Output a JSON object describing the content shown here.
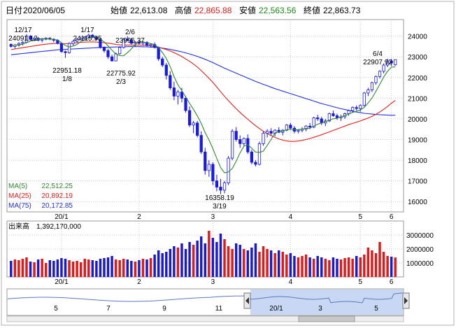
{
  "header": {
    "date_label": "日付",
    "date": "2020/06/05",
    "open_label": "始値",
    "open": "22,613.08",
    "high_label": "高値",
    "high": "22,865.88",
    "low_label": "安値",
    "low": "22,563.56",
    "close_label": "終値",
    "close": "22,863.73"
  },
  "colors": {
    "up": "#1a1ae6",
    "down": "#ffffff",
    "up_body": "#ffffff",
    "down_body": "#1a1ae6",
    "ma5": "#2e8b2e",
    "ma25": "#e0201a",
    "ma75": "#2030e0",
    "vol_up": "#e01a1a",
    "vol_down": "#1a1acc",
    "high_text": "#e01a1a",
    "low_text": "#1a8a1a",
    "nav_fill": "#c8d8f4"
  },
  "legend": [
    {
      "name": "MA(5)",
      "value": "22,512.25",
      "color_key": "ma5"
    },
    {
      "name": "MA(25)",
      "value": "20,892.19",
      "color_key": "ma25"
    },
    {
      "name": "MA(75)",
      "value": "20,172.85",
      "color_key": "ma75"
    }
  ],
  "volume_header": {
    "label": "出来高",
    "value": "1,392,170,000"
  },
  "annotations": [
    {
      "date": "12/17",
      "value": "24091.12"
    },
    {
      "date": "1/17",
      "value": "24115.95"
    },
    {
      "date": "2/6",
      "value": "23995.37"
    },
    {
      "date": "1/8",
      "value": "22951.18"
    },
    {
      "date": "2/3",
      "value": "22775.92"
    },
    {
      "date": "3/19",
      "value": "16358.19"
    },
    {
      "date": "6/4",
      "value": "22907.92"
    }
  ],
  "navigator": {
    "ticks": [
      "5",
      "7",
      "9",
      "11",
      "20/1",
      "3",
      "5"
    ]
  },
  "chart_data": [
    {
      "type": "candlestick",
      "ylim": [
        15500,
        24800
      ],
      "yticks": [
        16000,
        17000,
        18000,
        19000,
        20000,
        21000,
        22000,
        23000,
        24000
      ],
      "xticks": [
        "20/1",
        "2",
        "3",
        "4",
        "5",
        "6"
      ],
      "ohlc": [
        [
          23600,
          23650,
          23450,
          23500
        ],
        [
          23500,
          23620,
          23400,
          23560
        ],
        [
          23560,
          23700,
          23500,
          23650
        ],
        [
          23650,
          23750,
          23550,
          23700
        ],
        [
          23700,
          24091,
          23650,
          24000
        ],
        [
          24000,
          24050,
          23800,
          23850
        ],
        [
          23850,
          23950,
          23750,
          23900
        ],
        [
          23900,
          23950,
          23750,
          23800
        ],
        [
          23800,
          23900,
          23700,
          23850
        ],
        [
          23850,
          23950,
          23800,
          23900
        ],
        [
          23900,
          23950,
          23800,
          23850
        ],
        [
          23850,
          23900,
          23700,
          23800
        ],
        [
          23800,
          23850,
          23600,
          23650
        ],
        [
          23650,
          23700,
          23200,
          23250
        ],
        [
          23250,
          23300,
          22951,
          23200
        ],
        [
          23200,
          23700,
          23150,
          23650
        ],
        [
          23650,
          23800,
          23550,
          23750
        ],
        [
          23750,
          23900,
          23700,
          23850
        ],
        [
          23850,
          23950,
          23800,
          23900
        ],
        [
          23900,
          24000,
          23850,
          23950
        ],
        [
          23950,
          24116,
          23900,
          24050
        ],
        [
          24050,
          24100,
          23900,
          23950
        ],
        [
          23950,
          24000,
          23800,
          23850
        ],
        [
          23850,
          23900,
          23400,
          23450
        ],
        [
          23450,
          23500,
          23200,
          23300
        ],
        [
          23300,
          23400,
          22900,
          23000
        ],
        [
          23000,
          23100,
          22776,
          22800
        ],
        [
          22800,
          23200,
          22780,
          23150
        ],
        [
          23150,
          23500,
          23100,
          23450
        ],
        [
          23450,
          23900,
          23400,
          23850
        ],
        [
          23850,
          23995,
          23750,
          23800
        ],
        [
          23800,
          23900,
          23600,
          23650
        ],
        [
          23650,
          23750,
          23500,
          23700
        ],
        [
          23700,
          23800,
          23600,
          23650
        ],
        [
          23650,
          23750,
          23550,
          23700
        ],
        [
          23700,
          23750,
          23500,
          23550
        ],
        [
          23550,
          23650,
          23450,
          23600
        ],
        [
          23600,
          23700,
          23400,
          23450
        ],
        [
          23450,
          23500,
          22800,
          22900
        ],
        [
          22900,
          23000,
          22500,
          22600
        ],
        [
          22600,
          22700,
          21900,
          22100
        ],
        [
          22100,
          22300,
          21400,
          21500
        ],
        [
          21500,
          21800,
          20900,
          21100
        ],
        [
          21100,
          21400,
          20700,
          21300
        ],
        [
          21300,
          21500,
          20800,
          21000
        ],
        [
          21000,
          21100,
          20300,
          20400
        ],
        [
          20400,
          20600,
          19600,
          19700
        ],
        [
          19700,
          19900,
          19300,
          19800
        ],
        [
          19800,
          19900,
          19100,
          19200
        ],
        [
          19200,
          19400,
          18300,
          18400
        ],
        [
          18400,
          18600,
          17300,
          17500
        ],
        [
          17500,
          18000,
          17200,
          17800
        ],
        [
          17800,
          17900,
          16800,
          17000
        ],
        [
          17000,
          17300,
          16500,
          16700
        ],
        [
          16700,
          17100,
          16358,
          16550
        ],
        [
          16550,
          17000,
          16400,
          16900
        ],
        [
          16900,
          18200,
          16800,
          18100
        ],
        [
          18100,
          19500,
          18000,
          19400
        ],
        [
          19400,
          19600,
          18900,
          19000
        ],
        [
          19000,
          19200,
          18600,
          18800
        ],
        [
          18800,
          19100,
          18700,
          19050
        ],
        [
          19050,
          19250,
          18300,
          18400
        ],
        [
          18400,
          18500,
          17800,
          17900
        ],
        [
          17900,
          18000,
          17700,
          17800
        ],
        [
          17800,
          18900,
          17750,
          18800
        ],
        [
          18800,
          19400,
          18700,
          19300
        ],
        [
          19300,
          19500,
          19100,
          19400
        ],
        [
          19400,
          19550,
          19200,
          19300
        ],
        [
          19300,
          19500,
          19150,
          19450
        ],
        [
          19450,
          19600,
          19300,
          19350
        ],
        [
          19350,
          19500,
          19200,
          19450
        ],
        [
          19450,
          19750,
          19400,
          19700
        ],
        [
          19700,
          19800,
          19500,
          19550
        ],
        [
          19550,
          19650,
          19300,
          19400
        ],
        [
          19400,
          19500,
          19300,
          19450
        ],
        [
          19450,
          19600,
          19350,
          19500
        ],
        [
          19500,
          19700,
          19400,
          19650
        ],
        [
          19650,
          19800,
          19500,
          19600
        ],
        [
          19600,
          20100,
          19550,
          20050
        ],
        [
          20050,
          20200,
          19900,
          20000
        ],
        [
          20000,
          20100,
          19700,
          19800
        ],
        [
          19800,
          20000,
          19650,
          19900
        ],
        [
          19900,
          20300,
          19850,
          20250
        ],
        [
          20250,
          20400,
          20100,
          20150
        ],
        [
          20150,
          20250,
          19950,
          20050
        ],
        [
          20050,
          20200,
          19900,
          20100
        ],
        [
          20100,
          20300,
          20000,
          20250
        ],
        [
          20250,
          20450,
          20150,
          20400
        ],
        [
          20400,
          20600,
          20300,
          20550
        ],
        [
          20550,
          20650,
          20400,
          20500
        ],
        [
          20500,
          20700,
          20350,
          20650
        ],
        [
          20650,
          21300,
          20600,
          21250
        ],
        [
          21250,
          21500,
          21100,
          21400
        ],
        [
          21400,
          21800,
          21300,
          21750
        ],
        [
          21750,
          22100,
          21650,
          22050
        ],
        [
          22050,
          22350,
          21950,
          22300
        ],
        [
          22300,
          22650,
          22200,
          22600
        ],
        [
          22600,
          22908,
          22500,
          22800
        ],
        [
          22800,
          22900,
          22550,
          22700
        ],
        [
          22613,
          22866,
          22564,
          22864
        ]
      ],
      "ma5": [
        23550,
        23565,
        23590,
        23610,
        23690,
        23750,
        23800,
        23850,
        23880,
        23880,
        23860,
        23840,
        23810,
        23680,
        23540,
        23480,
        23520,
        23600,
        23740,
        23830,
        23900,
        23940,
        23920,
        23850,
        23720,
        23530,
        23320,
        23140,
        23060,
        23050,
        23200,
        23380,
        23600,
        23730,
        23720,
        23680,
        23640,
        23590,
        23440,
        23210,
        22920,
        22530,
        22040,
        21640,
        21360,
        21060,
        20750,
        20460,
        20140,
        19780,
        19340,
        18980,
        18560,
        18090,
        17640,
        17390,
        17430,
        17600,
        17950,
        18350,
        18680,
        18750,
        18580,
        18390,
        18380,
        18440,
        18720,
        19000,
        19320,
        19380,
        19400,
        19470,
        19490,
        19470,
        19480,
        19510,
        19540,
        19540,
        19650,
        19740,
        19800,
        19870,
        19940,
        20000,
        20030,
        20100,
        20160,
        20230,
        20310,
        20370,
        20430,
        20560,
        20770,
        21010,
        21330,
        21670,
        22020,
        22300,
        22500,
        22512
      ],
      "ma25": [
        23350,
        23380,
        23410,
        23440,
        23470,
        23500,
        23530,
        23560,
        23590,
        23610,
        23630,
        23640,
        23650,
        23640,
        23630,
        23640,
        23660,
        23680,
        23700,
        23710,
        23720,
        23720,
        23710,
        23700,
        23680,
        23660,
        23630,
        23600,
        23580,
        23570,
        23570,
        23570,
        23570,
        23570,
        23560,
        23550,
        23530,
        23500,
        23460,
        23410,
        23350,
        23280,
        23200,
        23110,
        23010,
        22900,
        22780,
        22650,
        22500,
        22330,
        22150,
        21960,
        21760,
        21540,
        21310,
        21090,
        20880,
        20680,
        20490,
        20310,
        20140,
        19980,
        19820,
        19670,
        19530,
        19400,
        19290,
        19190,
        19100,
        19030,
        18970,
        18930,
        18910,
        18910,
        18930,
        18960,
        19000,
        19050,
        19110,
        19170,
        19230,
        19300,
        19370,
        19440,
        19510,
        19580,
        19650,
        19720,
        19780,
        19840,
        19900,
        19970,
        20040,
        20120,
        20220,
        20330,
        20460,
        20600,
        20760,
        20892
      ],
      "ma75": [
        23100,
        23120,
        23140,
        23160,
        23180,
        23200,
        23220,
        23240,
        23260,
        23280,
        23300,
        23320,
        23340,
        23350,
        23360,
        23370,
        23380,
        23390,
        23400,
        23410,
        23420,
        23430,
        23440,
        23450,
        23460,
        23465,
        23470,
        23475,
        23480,
        23485,
        23490,
        23490,
        23490,
        23490,
        23485,
        23480,
        23470,
        23460,
        23440,
        23420,
        23390,
        23360,
        23320,
        23280,
        23240,
        23190,
        23140,
        23080,
        23020,
        22950,
        22880,
        22800,
        22720,
        22630,
        22540,
        22450,
        22370,
        22290,
        22210,
        22130,
        22050,
        21970,
        21890,
        21810,
        21740,
        21670,
        21600,
        21530,
        21460,
        21400,
        21340,
        21280,
        21220,
        21160,
        21100,
        21040,
        20980,
        20920,
        20860,
        20800,
        20740,
        20690,
        20640,
        20590,
        20540,
        20490,
        20450,
        20410,
        20370,
        20330,
        20300,
        20270,
        20250,
        20230,
        20210,
        20200,
        20190,
        20180,
        20175,
        20173
      ]
    },
    {
      "type": "bar",
      "name": "出来高",
      "ylim": [
        0,
        4000000
      ],
      "yticks": [
        1000000,
        2000000,
        3000000
      ],
      "xticks": [
        "20/1",
        "2",
        "3",
        "4",
        "5",
        "6"
      ],
      "values": [
        1150000,
        1250000,
        1200000,
        1300000,
        1400000,
        1100000,
        1050000,
        1250000,
        1300000,
        1000000,
        1200000,
        1150000,
        1250000,
        1350000,
        1300000,
        1200000,
        1100000,
        1150000,
        1050000,
        1300000,
        1250000,
        1200000,
        1150000,
        1300000,
        1350000,
        1400000,
        1500000,
        1250000,
        1200000,
        1300000,
        1250000,
        1150000,
        1100000,
        1200000,
        1300000,
        1250000,
        1350000,
        1600000,
        1900000,
        1700000,
        1800000,
        2000000,
        2200000,
        2100000,
        2400000,
        2000000,
        2500000,
        2300000,
        2600000,
        2900000,
        2400000,
        3300000,
        2800000,
        2500000,
        3100000,
        2700000,
        2200000,
        2000000,
        2400000,
        2300000,
        2000000,
        1900000,
        2100000,
        2400000,
        1800000,
        2200000,
        2000000,
        1900000,
        1700000,
        1900000,
        1800000,
        1600000,
        1700000,
        1500000,
        1400000,
        1500000,
        1600000,
        1400000,
        1300000,
        1500000,
        1400000,
        1300000,
        1200000,
        1400000,
        1300000,
        1250000,
        1350000,
        1400000,
        1300000,
        1500000,
        1400000,
        1600000,
        2100000,
        1900000,
        1700000,
        2500000,
        1800000,
        1500000,
        1450000,
        1392170
      ]
    }
  ]
}
